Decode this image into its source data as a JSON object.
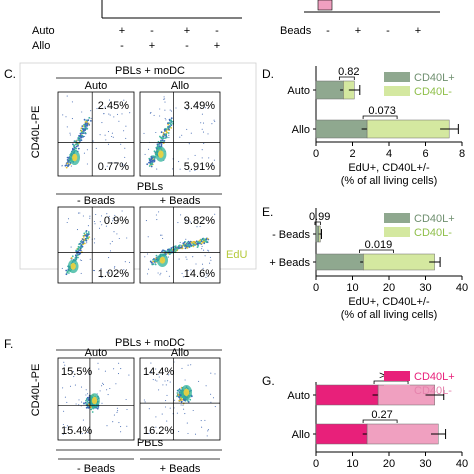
{
  "top_left_conditions": [
    {
      "name": "Auto",
      "marks": [
        "+",
        "-",
        "+",
        "-"
      ]
    },
    {
      "name": "Allo",
      "marks": [
        "-",
        "+",
        "-",
        "+"
      ]
    }
  ],
  "top_right_conditions": [
    {
      "name": "Beads",
      "marks": [
        "-",
        "+",
        "-",
        "+"
      ]
    }
  ],
  "panel_labels": {
    "c": "C.",
    "d": "D.",
    "e": "E.",
    "f": "F.",
    "g": "G."
  },
  "flow_c": {
    "y_axis_label": "CD40L-PE",
    "x_axis_label": "EdU",
    "group1_title": "PBLs + moDC",
    "group2_title": "PBLs",
    "plots": [
      {
        "label": "Auto",
        "upper_right": "2.45%",
        "lower_right": "0.77%"
      },
      {
        "label": "Allo",
        "upper_right": "3.49%",
        "lower_right": "5.91%"
      },
      {
        "label": "- Beads",
        "upper_right": "0.9%",
        "lower_right": "1.02%"
      },
      {
        "label": "+ Beads",
        "upper_right": "9.82%",
        "lower_right": "14.6%"
      }
    ]
  },
  "flow_f": {
    "y_axis_label": "CD40L-PE",
    "group1_title": "PBLs + moDC",
    "group2_title": "PBLs",
    "plots": [
      {
        "label": "Auto",
        "upper_left": "15.5%",
        "lower_left": "15.4%"
      },
      {
        "label": "Allo",
        "upper_left": "14.4%",
        "lower_left": "16.2%"
      }
    ],
    "bottom_labels": [
      "- Beads",
      "+ Beads"
    ]
  },
  "chart_data": [
    {
      "panel": "D",
      "type": "bar",
      "orientation": "horizontal",
      "stacked": true,
      "categories": [
        "Auto",
        "Allo"
      ],
      "series": [
        {
          "name": "CD40L+",
          "color": "#8fa88f",
          "values": [
            1.5,
            2.8
          ]
        },
        {
          "name": "CD40L-",
          "color": "#d4e8a0",
          "values": [
            0.6,
            4.5
          ]
        }
      ],
      "errors": [
        0.3,
        0.5
      ],
      "p_values": [
        "0.82",
        "0.073"
      ],
      "xlim": [
        0,
        8
      ],
      "xticks": [
        0,
        2,
        4,
        6,
        8
      ],
      "xlabel": "EdU+, CD40L+/-",
      "xlabel2": "(% of all living cells)",
      "legend_position": "top-right"
    },
    {
      "panel": "E",
      "type": "bar",
      "orientation": "horizontal",
      "stacked": true,
      "categories": [
        "- Beads",
        "+ Beads"
      ],
      "series": [
        {
          "name": "CD40L+",
          "color": "#8fa88f",
          "values": [
            0.8,
            13.0
          ]
        },
        {
          "name": "CD40L-",
          "color": "#d4e8a0",
          "values": [
            0.4,
            19.5
          ]
        }
      ],
      "errors": [
        0.3,
        1.5
      ],
      "p_values": [
        "0.99",
        "0.019"
      ],
      "xlim": [
        0,
        40
      ],
      "xticks": [
        0,
        10,
        20,
        30,
        40
      ],
      "xlabel": "EdU+, CD40L+/-",
      "xlabel2": "(% of all living cells)",
      "legend_position": "top-right"
    },
    {
      "panel": "G",
      "type": "bar",
      "orientation": "horizontal",
      "stacked": true,
      "categories": [
        "Auto",
        "Allo"
      ],
      "series": [
        {
          "name": "CD40L+",
          "color": "#e8207a",
          "values": [
            17.0,
            14.0
          ]
        },
        {
          "name": "CD40L-",
          "color": "#f0a0c0",
          "values": [
            15.5,
            19.5
          ]
        }
      ],
      "errors": [
        2.5,
        2.0
      ],
      "p_values": [
        ">0.99",
        "0.27"
      ],
      "xlim": [
        0,
        40
      ],
      "xticks": [
        0,
        10,
        20,
        30,
        40
      ],
      "xlabel": "",
      "xlabel2": "",
      "legend_position": "top-right"
    }
  ]
}
